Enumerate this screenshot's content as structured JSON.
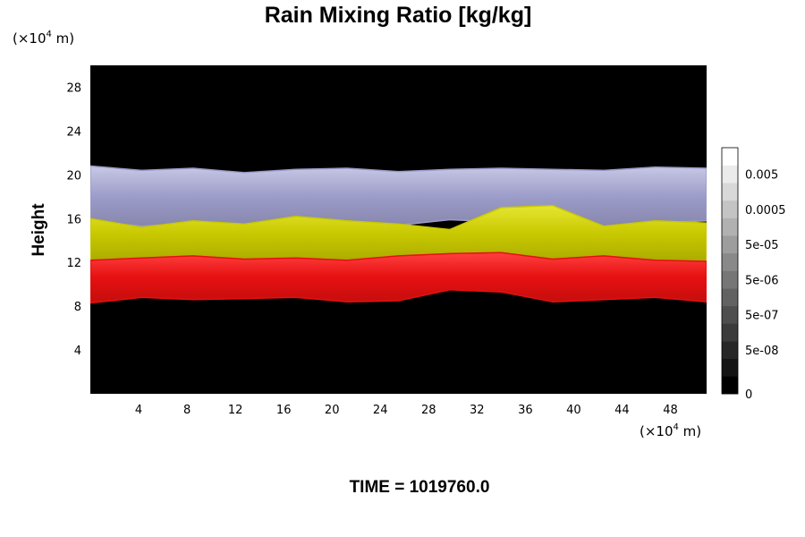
{
  "chart_data": {
    "type": "heatmap",
    "title": "Rain Mixing Ratio [kg/kg]",
    "ylabel": "Height",
    "xlabel": "",
    "x_unit": {
      "prefix": "(×10",
      "exp": "4",
      "suffix": " m)"
    },
    "y_unit": {
      "prefix": "(×10",
      "exp": "4",
      "suffix": " m)"
    },
    "x_ticks": [
      4,
      8,
      12,
      16,
      20,
      24,
      28,
      32,
      36,
      40,
      44,
      48
    ],
    "y_ticks": [
      4,
      8,
      12,
      16,
      20,
      24,
      28
    ],
    "xlim": [
      0,
      51
    ],
    "ylim": [
      0,
      30
    ],
    "footer": "TIME = 1019760.0",
    "background_color": "#000000",
    "colorbar": {
      "levels": 14,
      "labels": [
        {
          "text": "0.005",
          "level": 12.5
        },
        {
          "text": "0.0005",
          "level": 10.5
        },
        {
          "text": "5e-05",
          "level": 8.5
        },
        {
          "text": "5e-06",
          "level": 6.5
        },
        {
          "text": "5e-07",
          "level": 4.5
        },
        {
          "text": "5e-08",
          "level": 2.5
        },
        {
          "text": "0",
          "level": 0
        }
      ]
    },
    "layers": [
      {
        "name": "lavender",
        "color": "#9b9bc8",
        "highlight": "#c8c8e6",
        "bottom": [
          15.8,
          15.3,
          15.6,
          15.0,
          15.6,
          15.8,
          15.4,
          15.9,
          15.7,
          15.5,
          15.2,
          15.6,
          15.8
        ],
        "top": [
          20.8,
          20.4,
          20.6,
          20.2,
          20.5,
          20.6,
          20.3,
          20.5,
          20.6,
          20.5,
          20.4,
          20.7,
          20.6
        ]
      },
      {
        "name": "yellow",
        "color": "#c8c800",
        "highlight": "#e6e632",
        "bottom": [
          12.0,
          12.3,
          12.5,
          12.2,
          12.3,
          12.1,
          12.5,
          12.6,
          12.7,
          12.2,
          12.5,
          12.1,
          12.0
        ],
        "top": [
          16.0,
          15.2,
          15.8,
          15.5,
          16.2,
          15.8,
          15.5,
          15.0,
          17.0,
          17.2,
          15.3,
          15.8,
          15.6
        ]
      },
      {
        "name": "red",
        "color": "#e61010",
        "highlight": "#ff4040",
        "bottom": [
          8.3,
          8.8,
          8.6,
          8.7,
          8.8,
          8.4,
          8.5,
          9.5,
          9.3,
          8.4,
          8.6,
          8.8,
          8.4
        ],
        "top": [
          12.2,
          12.4,
          12.6,
          12.3,
          12.4,
          12.2,
          12.6,
          12.8,
          12.9,
          12.3,
          12.6,
          12.2,
          12.1
        ]
      }
    ]
  }
}
